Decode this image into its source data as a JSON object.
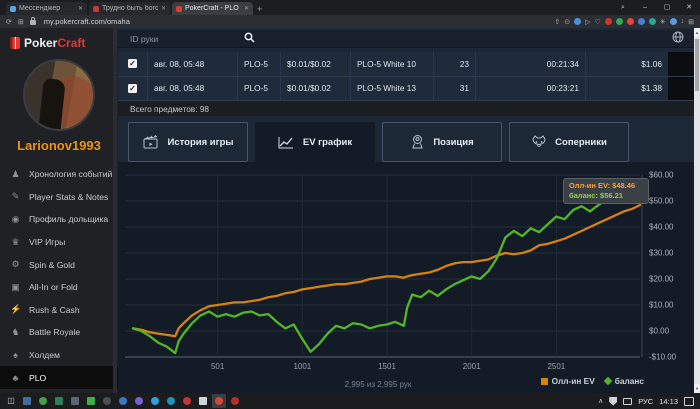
{
  "icons": {
    "close_tab": "✕",
    "new_tab": "+",
    "search": "⌕",
    "minimize": "–",
    "maximize": "▢",
    "close": "✕",
    "reload": "⟳",
    "extensions": "⊞",
    "lock": "🔒",
    "heart": "♡",
    "play": "▷",
    "share": "⇧",
    "camera": "⊙",
    "download": "↓",
    "menu": "⋮",
    "person": "☻",
    "up_arrow": "▲",
    "down_arrow": "▼",
    "chevron_up": "∧",
    "check": "✓"
  },
  "browser": {
    "tabs": [
      {
        "title": "Мессенджер",
        "favicon_color": "#58a6e8",
        "active": false
      },
      {
        "title": "Трудно быть богом,но я с",
        "favicon_color": "#c23a3a",
        "active": false
      },
      {
        "title": "PokerCraft - PLO",
        "favicon_color": "#e53935",
        "active": true
      }
    ],
    "url": "my.pokercraft.com/omaha",
    "toolbar_icons": [
      {
        "name": "share-icon",
        "glyph": "⇧",
        "color": ""
      },
      {
        "name": "camera-icon",
        "glyph": "⊙",
        "color": ""
      },
      {
        "name": "blue-ext-icon",
        "glyph": "",
        "color": "#4a90d9"
      },
      {
        "name": "play-ext-icon",
        "glyph": "▷",
        "color": ""
      },
      {
        "name": "heart-ext-icon",
        "glyph": "♡",
        "color": ""
      },
      {
        "name": "red-ext-icon",
        "glyph": "",
        "color": "#d93025"
      },
      {
        "name": "green-ext-icon",
        "glyph": "",
        "color": "#34a853"
      },
      {
        "name": "avg-ext-icon",
        "glyph": "",
        "color": "#ea4335"
      },
      {
        "name": "cart-ext-icon",
        "glyph": "",
        "color": "#4a7bd9"
      },
      {
        "name": "teal-ext-icon",
        "glyph": "",
        "color": "#26a69a"
      },
      {
        "name": "globe-ext-icon",
        "glyph": "✳",
        "color": ""
      },
      {
        "name": "profile-avatar-icon",
        "glyph": "",
        "color": "#5f9ae0"
      },
      {
        "name": "download-icon",
        "glyph": "↓",
        "color": ""
      },
      {
        "name": "menu-icon",
        "glyph": "⊞",
        "color": ""
      }
    ]
  },
  "sidebar": {
    "logo": {
      "part1": "Poker",
      "part2": "Craft"
    },
    "username": "Larionov1993",
    "items": [
      {
        "label": "Хронология событий",
        "icon": "♟",
        "icon_name": "timeline-icon",
        "active": false
      },
      {
        "label": "Player Stats & Notes",
        "icon": "✎",
        "icon_name": "notes-icon",
        "active": false
      },
      {
        "label": "Профиль дольщика",
        "icon": "◉",
        "icon_name": "staker-profile-icon",
        "active": false
      },
      {
        "label": "VIP Игры",
        "icon": "♛",
        "icon_name": "vip-games-icon",
        "active": false
      },
      {
        "label": "Spin & Gold",
        "icon": "⚙",
        "icon_name": "spin-gold-icon",
        "active": false
      },
      {
        "label": "All-In or Fold",
        "icon": "▣",
        "icon_name": "all-in-or-fold-icon",
        "active": false
      },
      {
        "label": "Rush & Cash",
        "icon": "⚡",
        "icon_name": "rush-cash-icon",
        "active": false
      },
      {
        "label": "Battle Royale",
        "icon": "♞",
        "icon_name": "battle-royale-icon",
        "active": false
      },
      {
        "label": "Холдем",
        "icon": "♠",
        "icon_name": "holdem-icon",
        "active": false
      },
      {
        "label": "PLO",
        "icon": "♣",
        "icon_name": "plo-icon",
        "active": true
      }
    ]
  },
  "main": {
    "search": {
      "placeholder": "ID руки"
    },
    "table": {
      "rows": [
        {
          "checked": true,
          "date": "авг. 08, 05:48",
          "game": "PLO-5",
          "stakes": "$0.01/$0.02",
          "table_name": "PLO-5 White 10",
          "hands": "23",
          "duration": "00:21:34",
          "amount": "$1.06"
        },
        {
          "checked": true,
          "date": "авг. 08, 05:48",
          "game": "PLO-5",
          "stakes": "$0.01/$0.02",
          "table_name": "PLO-5 White 13",
          "hands": "31",
          "duration": "00:23:21",
          "amount": "$1.38"
        }
      ],
      "footer": "Всего предметов: 98"
    },
    "view_tabs": [
      {
        "label": "История игры",
        "active": false
      },
      {
        "label": "EV график",
        "active": true
      },
      {
        "label": "Позиция",
        "active": false
      },
      {
        "label": "Соперники",
        "active": false
      }
    ]
  },
  "chart_data": {
    "type": "line",
    "xlabel": "hands",
    "ylabel": "USD",
    "ylim": [
      -10,
      60
    ],
    "ytick_step": 10,
    "yticks": [
      "$60.00",
      "$50.00",
      "$40.00",
      "$30.00",
      "$20.00",
      "$10.00",
      "$0.00",
      "-$10.00"
    ],
    "ytick_values": [
      60,
      50,
      40,
      30,
      20,
      10,
      0,
      -10
    ],
    "xticks": [
      "501",
      "1001",
      "1501",
      "2001",
      "2501"
    ],
    "xtick_values": [
      501,
      1001,
      1501,
      2001,
      2501
    ],
    "xlim": [
      1,
      2995
    ],
    "grid": true,
    "x": [
      1,
      50,
      100,
      150,
      200,
      250,
      270,
      300,
      350,
      400,
      450,
      500,
      550,
      600,
      650,
      700,
      750,
      800,
      850,
      900,
      950,
      1000,
      1050,
      1100,
      1150,
      1200,
      1250,
      1300,
      1350,
      1400,
      1450,
      1500,
      1550,
      1600,
      1620,
      1650,
      1700,
      1750,
      1800,
      1850,
      1900,
      1950,
      2000,
      2050,
      2100,
      2150,
      2200,
      2250,
      2300,
      2350,
      2400,
      2450,
      2500,
      2550,
      2600,
      2650,
      2700,
      2750,
      2800,
      2850,
      2900,
      2950,
      2995
    ],
    "series": [
      {
        "name": "Олл-ин EV",
        "color": "#d8820e",
        "marker": "square",
        "values": [
          1,
          0.5,
          -0.5,
          -1,
          -1.5,
          -2,
          1,
          3,
          6,
          8,
          9.5,
          10,
          10.5,
          11,
          11,
          11.5,
          12,
          13,
          13.5,
          14.5,
          15,
          16,
          16.5,
          17,
          17.5,
          18,
          18,
          18.5,
          19,
          20,
          20.5,
          21,
          21,
          20.5,
          21,
          21.5,
          22,
          22.5,
          23.5,
          25,
          26,
          26.5,
          26.5,
          27,
          27.5,
          29,
          30,
          29.5,
          30,
          31,
          33,
          33.5,
          34.5,
          35.5,
          37,
          38.5,
          40,
          41.5,
          43,
          44.5,
          46,
          47,
          48.46
        ]
      },
      {
        "name": "баланс",
        "color": "#54b626",
        "marker": "diamond",
        "values": [
          1,
          0,
          -2,
          -4.5,
          -6,
          -8.5,
          -4,
          -1,
          3,
          6,
          7.5,
          5.5,
          6.5,
          5.5,
          7,
          7.5,
          6,
          6.5,
          3.5,
          1,
          2.5,
          -3,
          -8,
          -5,
          -1,
          2,
          1,
          3,
          2.5,
          1,
          2,
          2.5,
          3.5,
          2,
          9,
          14,
          13,
          15.5,
          13.5,
          16,
          18,
          19.5,
          21,
          20,
          23,
          28,
          36,
          38.5,
          36.5,
          39.5,
          38,
          41,
          44,
          43,
          46.5,
          48,
          46,
          48.5,
          50.5,
          49.5,
          52,
          54,
          56.21
        ]
      }
    ],
    "tooltip": {
      "line1": "Олл-ин EV: $48.46",
      "line2": "баланс: $56.21"
    },
    "legend": [
      {
        "label": "Олл-ин EV",
        "color": "#d8820e",
        "marker": "square"
      },
      {
        "label": "баланс",
        "color": "#54b626",
        "marker": "diamond"
      }
    ],
    "status": "2,995 из 2,995 рук"
  },
  "taskbar": {
    "icons": [
      {
        "name": "task-view-icon",
        "type": "glyph",
        "value": "◫",
        "color": "#d0d5db"
      },
      {
        "name": "display-app-icon",
        "type": "square",
        "color": "#3e6f9e"
      },
      {
        "name": "green-app-icon",
        "type": "circle",
        "color": "#43a047"
      },
      {
        "name": "photos-app-icon",
        "type": "square",
        "color": "#2e7d5b"
      },
      {
        "name": "chart-app-icon",
        "type": "square",
        "color": "#5a6672"
      },
      {
        "name": "capture-app-icon",
        "type": "square",
        "color": "#3fae49"
      },
      {
        "name": "settings-app-icon",
        "type": "circle",
        "color": "#4a4f55"
      },
      {
        "name": "blue-app-icon",
        "type": "circle",
        "color": "#3b78c3"
      },
      {
        "name": "purple-app-icon",
        "type": "circle",
        "color": "#7b5fd0"
      },
      {
        "name": "skype-app-icon",
        "type": "circle",
        "color": "#2f9fd8"
      },
      {
        "name": "browser-app-icon",
        "type": "circle",
        "color": "#1f93b8"
      },
      {
        "name": "red-app-icon",
        "type": "circle",
        "color": "#c03535"
      },
      {
        "name": "window-app-icon",
        "type": "square",
        "color": "#cfd4da"
      },
      {
        "name": "ggpoker-app-icon",
        "type": "circle",
        "color": "#d04a3a",
        "active": true
      },
      {
        "name": "reddot-app-icon",
        "type": "circle",
        "color": "#b0302a"
      }
    ],
    "lang": "РУС",
    "time": "14:13"
  }
}
